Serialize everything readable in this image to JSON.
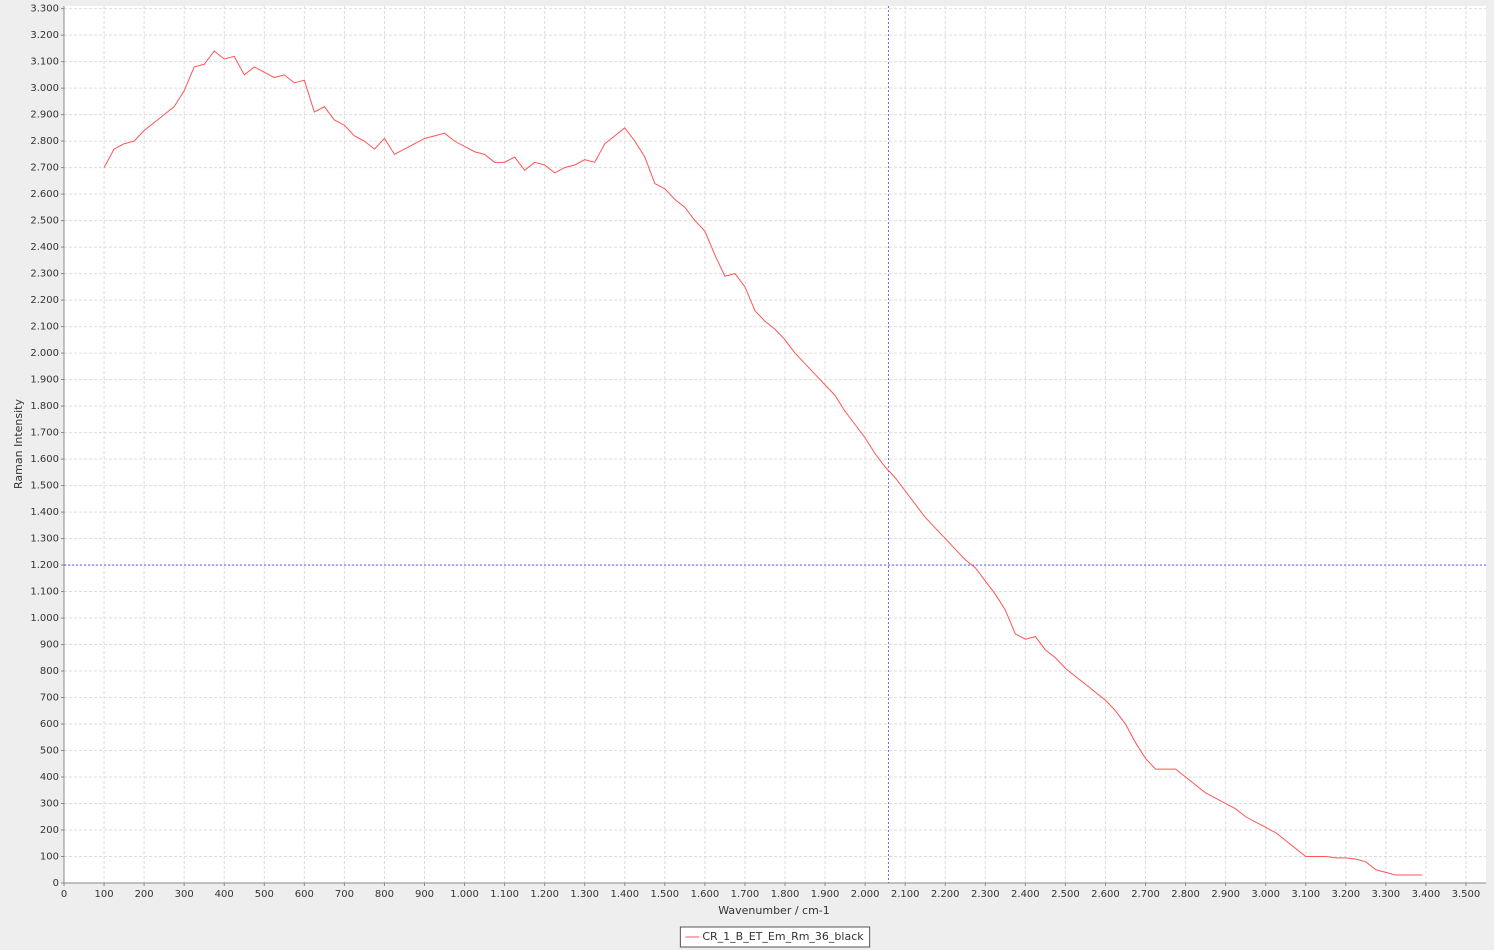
{
  "chart_data": {
    "type": "line",
    "xlabel": "Wavenumber / cm-1",
    "ylabel": "Raman Intensity",
    "xlim": [
      0,
      3550
    ],
    "ylim": [
      0,
      3310
    ],
    "grid": true,
    "legend": "bottom",
    "crosshair": {
      "x": 2058,
      "y": 1200
    },
    "xticks": [
      0,
      100,
      200,
      300,
      400,
      500,
      600,
      700,
      800,
      900,
      {
        "value": 1000,
        "label": "1.000"
      },
      {
        "value": 1100,
        "label": "1.100"
      },
      {
        "value": 1200,
        "label": "1.200"
      },
      {
        "value": 1300,
        "label": "1.300"
      },
      {
        "value": 1400,
        "label": "1.400"
      },
      {
        "value": 1500,
        "label": "1.500"
      },
      {
        "value": 1600,
        "label": "1.600"
      },
      {
        "value": 1700,
        "label": "1.700"
      },
      {
        "value": 1800,
        "label": "1.800"
      },
      {
        "value": 1900,
        "label": "1.900"
      },
      {
        "value": 2000,
        "label": "2.000"
      },
      {
        "value": 2100,
        "label": "2.100"
      },
      {
        "value": 2200,
        "label": "2.200"
      },
      {
        "value": 2300,
        "label": "2.300"
      },
      {
        "value": 2400,
        "label": "2.400"
      },
      {
        "value": 2500,
        "label": "2.500"
      },
      {
        "value": 2600,
        "label": "2.600"
      },
      {
        "value": 2700,
        "label": "2.700"
      },
      {
        "value": 2800,
        "label": "2.800"
      },
      {
        "value": 2900,
        "label": "2.900"
      },
      {
        "value": 3000,
        "label": "3.000"
      },
      {
        "value": 3100,
        "label": "3.100"
      },
      {
        "value": 3200,
        "label": "3.200"
      },
      {
        "value": 3300,
        "label": "3.300"
      },
      {
        "value": 3400,
        "label": "3.400"
      },
      {
        "value": 3500,
        "label": "3.500"
      }
    ],
    "yticks": [
      0,
      100,
      200,
      300,
      400,
      500,
      600,
      700,
      800,
      900,
      {
        "value": 1000,
        "label": "1.000"
      },
      {
        "value": 1100,
        "label": "1.100"
      },
      {
        "value": 1200,
        "label": "1.200"
      },
      {
        "value": 1300,
        "label": "1.300"
      },
      {
        "value": 1400,
        "label": "1.400"
      },
      {
        "value": 1500,
        "label": "1.500"
      },
      {
        "value": 1600,
        "label": "1.600"
      },
      {
        "value": 1700,
        "label": "1.700"
      },
      {
        "value": 1800,
        "label": "1.800"
      },
      {
        "value": 1900,
        "label": "1.900"
      },
      {
        "value": 2000,
        "label": "2.000"
      },
      {
        "value": 2100,
        "label": "2.100"
      },
      {
        "value": 2200,
        "label": "2.200"
      },
      {
        "value": 2300,
        "label": "2.300"
      },
      {
        "value": 2400,
        "label": "2.400"
      },
      {
        "value": 2500,
        "label": "2.500"
      },
      {
        "value": 2600,
        "label": "2.600"
      },
      {
        "value": 2700,
        "label": "2.700"
      },
      {
        "value": 2800,
        "label": "2.800"
      },
      {
        "value": 2900,
        "label": "2.900"
      },
      {
        "value": 3000,
        "label": "3.000"
      },
      {
        "value": 3100,
        "label": "3.100"
      },
      {
        "value": 3200,
        "label": "3.200"
      },
      {
        "value": 3300,
        "label": "3.300"
      }
    ],
    "x": [
      100,
      125,
      150,
      175,
      200,
      225,
      250,
      275,
      300,
      325,
      350,
      375,
      400,
      425,
      450,
      475,
      500,
      525,
      550,
      575,
      600,
      625,
      650,
      675,
      700,
      725,
      750,
      775,
      800,
      825,
      850,
      875,
      900,
      925,
      950,
      975,
      1000,
      1025,
      1050,
      1075,
      1100,
      1125,
      1150,
      1175,
      1200,
      1225,
      1250,
      1275,
      1300,
      1325,
      1350,
      1375,
      1400,
      1425,
      1450,
      1475,
      1500,
      1525,
      1550,
      1575,
      1600,
      1625,
      1650,
      1675,
      1700,
      1725,
      1750,
      1775,
      1800,
      1825,
      1850,
      1875,
      1900,
      1925,
      1950,
      1975,
      2000,
      2025,
      2050,
      2075,
      2100,
      2125,
      2150,
      2175,
      2200,
      2225,
      2250,
      2275,
      2300,
      2325,
      2350,
      2375,
      2400,
      2425,
      2450,
      2475,
      2500,
      2525,
      2550,
      2575,
      2600,
      2625,
      2650,
      2675,
      2700,
      2725,
      2750,
      2775,
      2800,
      2825,
      2850,
      2875,
      2900,
      2925,
      2950,
      2975,
      3000,
      3025,
      3050,
      3075,
      3100,
      3125,
      3150,
      3175,
      3200,
      3225,
      3250,
      3275,
      3300,
      3325,
      3350,
      3375,
      3390
    ],
    "series": [
      {
        "name": "CR_1_B_ET_Em_Rm_36_black",
        "color": "#ff5555",
        "values": [
          2700,
          2770,
          2790,
          2800,
          2840,
          2870,
          2900,
          2930,
          2990,
          3080,
          3090,
          3140,
          3110,
          3120,
          3050,
          3080,
          3060,
          3040,
          3050,
          3020,
          3030,
          2910,
          2930,
          2880,
          2860,
          2820,
          2800,
          2770,
          2810,
          2750,
          2770,
          2790,
          2810,
          2820,
          2830,
          2800,
          2780,
          2760,
          2750,
          2720,
          2720,
          2740,
          2690,
          2720,
          2710,
          2680,
          2700,
          2710,
          2730,
          2720,
          2790,
          2820,
          2850,
          2800,
          2740,
          2640,
          2620,
          2580,
          2550,
          2500,
          2460,
          2370,
          2290,
          2300,
          2250,
          2160,
          2120,
          2090,
          2050,
          2000,
          1960,
          1920,
          1880,
          1840,
          1780,
          1730,
          1680,
          1620,
          1570,
          1530,
          1480,
          1430,
          1380,
          1340,
          1300,
          1260,
          1220,
          1190,
          1140,
          1090,
          1030,
          940,
          920,
          930,
          880,
          850,
          810,
          780,
          750,
          720,
          690,
          650,
          600,
          530,
          470,
          430,
          430,
          430,
          400,
          370,
          340,
          320,
          300,
          280,
          250,
          230,
          210,
          190,
          160,
          130,
          100,
          100,
          100,
          95,
          95,
          90,
          80,
          50,
          40,
          30,
          30,
          30,
          30
        ]
      }
    ]
  }
}
